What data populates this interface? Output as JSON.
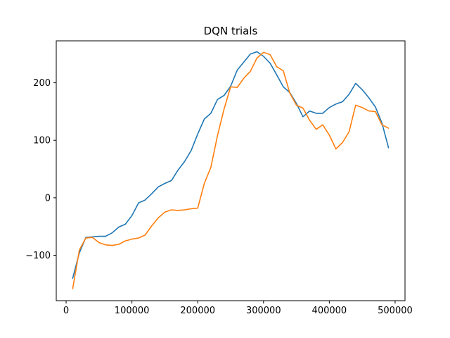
{
  "chart_data": {
    "type": "line",
    "title": "DQN trials",
    "xlabel": "",
    "ylabel": "",
    "xlim": [
      -15000,
      515000
    ],
    "ylim": [
      -179,
      273
    ],
    "grid": false,
    "legend": "none",
    "xticks": [
      0,
      100000,
      200000,
      300000,
      400000,
      500000
    ],
    "xtick_labels": [
      "0",
      "100000",
      "200000",
      "300000",
      "400000",
      "500000"
    ],
    "yticks": [
      -100,
      0,
      100,
      200
    ],
    "ytick_labels": [
      "−100",
      "0",
      "100",
      "200"
    ],
    "series": [
      {
        "color": "#1f77b4",
        "x": [
          10000,
          20000,
          30000,
          40000,
          50000,
          60000,
          70000,
          80000,
          90000,
          100000,
          110000,
          120000,
          130000,
          140000,
          150000,
          160000,
          170000,
          180000,
          190000,
          200000,
          210000,
          220000,
          230000,
          240000,
          250000,
          260000,
          270000,
          280000,
          290000,
          300000,
          310000,
          320000,
          330000,
          340000,
          350000,
          360000,
          370000,
          380000,
          390000,
          400000,
          410000,
          420000,
          430000,
          440000,
          450000,
          460000,
          470000,
          480000,
          490000
        ],
        "y": [
          -140,
          -96,
          -69,
          -68,
          -67,
          -67,
          -61,
          -51,
          -46,
          -31,
          -9,
          -4,
          7,
          19,
          25,
          30,
          48,
          63,
          82,
          111,
          137,
          147,
          171,
          178,
          194,
          222,
          236,
          250,
          254,
          246,
          234,
          214,
          193,
          183,
          164,
          141,
          151,
          147,
          147,
          157,
          163,
          167,
          180,
          199,
          188,
          174,
          158,
          130,
          87
        ]
      },
      {
        "color": "#ff7f0e",
        "x": [
          10000,
          20000,
          30000,
          40000,
          50000,
          60000,
          70000,
          80000,
          90000,
          100000,
          110000,
          120000,
          130000,
          140000,
          150000,
          160000,
          170000,
          180000,
          190000,
          200000,
          210000,
          220000,
          230000,
          240000,
          250000,
          260000,
          270000,
          280000,
          290000,
          300000,
          310000,
          320000,
          330000,
          340000,
          350000,
          360000,
          370000,
          380000,
          390000,
          400000,
          410000,
          420000,
          430000,
          440000,
          450000,
          460000,
          470000,
          480000,
          490000
        ],
        "y": [
          -158,
          -91,
          -70,
          -69,
          -78,
          -82,
          -83,
          -81,
          -75,
          -72,
          -70,
          -65,
          -49,
          -35,
          -25,
          -21,
          -22,
          -21,
          -19,
          -18,
          25,
          53,
          108,
          154,
          193,
          192,
          208,
          220,
          243,
          253,
          249,
          228,
          221,
          182,
          161,
          156,
          135,
          119,
          127,
          109,
          85,
          96,
          115,
          161,
          157,
          151,
          150,
          127,
          121
        ]
      }
    ]
  }
}
